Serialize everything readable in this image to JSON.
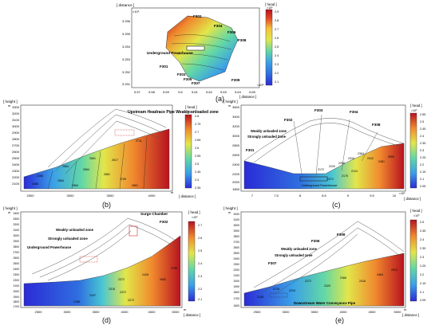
{
  "colorscale": [
    "#2b2bd6",
    "#2f6fe0",
    "#3aa0e8",
    "#49c6d3",
    "#62d7a6",
    "#9fe06a",
    "#e2e64a",
    "#f6c23a",
    "#f08a2e",
    "#e24a26",
    "#b8121f"
  ],
  "panel_a": {
    "label": "(a)",
    "y_axis_title": "[ distance ]",
    "exp_y": "×10⁶",
    "exp_x": "×10⁵",
    "x_axis_title": "[ distance ]",
    "x_unit": "m",
    "y_unit": "m",
    "y_ticks": [
      "3.256",
      "3.255",
      "3.254",
      "3.253",
      "3.252",
      "3.251"
    ],
    "x_ticks": [
      "5.57",
      "5.58",
      "5.59",
      "5.6",
      "5.61",
      "5.62",
      "5.63",
      "5.64",
      "5.65"
    ],
    "cb_title": "[ head ]",
    "cb_exp": "×10³",
    "cb_ticks": [
      "2.9",
      "2.8",
      "2.7",
      "2.6",
      "2.5",
      "2.4",
      "2.3",
      "2.2",
      "2.1"
    ],
    "callouts": {
      "f302": "F302",
      "f304": "F304",
      "f306": "F306",
      "f308": "F308",
      "powerhouse": "Underground\nPowerhouse",
      "f301": "F301",
      "f303": "F303",
      "f305": "F305",
      "f307": "F307",
      "f309": "F309"
    }
  },
  "panel_b": {
    "label": "(b)",
    "y_axis_title": "[ height ]",
    "y_unit": "m",
    "y_ticks": [
      "3300",
      "3200",
      "3100",
      "3000",
      "2900",
      "2800",
      "2700",
      "2600",
      "2500",
      "2400",
      "2300",
      "2200",
      "2100"
    ],
    "x_ticks": [
      "2500",
      "3000",
      "3500",
      "4000"
    ],
    "x_unit": "m",
    "x_axis_title": "[ distance ]",
    "cb_title": "[ head ]",
    "cb_exp": "×10³",
    "cb_ticks": [
      "2.8",
      "2.75",
      "2.7",
      "2.65",
      "2.6",
      "2.55",
      "2.5",
      "2.45",
      "2.4",
      "2.35"
    ],
    "annotation": "Upstream Headrace\nPipe\nWeakly unloaded\nzone",
    "contours": [
      "2466",
      "2564",
      "2661",
      "2564",
      "2711",
      "2466",
      "2564",
      "2661",
      "2759",
      "2617",
      "2564",
      "2661"
    ]
  },
  "panel_c": {
    "label": "(c)",
    "y_axis_title": "[ height ]",
    "y_unit": "m",
    "y_ticks": [
      "3600",
      "3400",
      "3200",
      "3000",
      "2800",
      "2600",
      "2400",
      "2200",
      "2000",
      "1800"
    ],
    "x_ticks": [
      "7",
      "7.5",
      "8",
      "8.5",
      "9",
      "9.5",
      "10"
    ],
    "x_exp": "×10⁵",
    "x_axis_title": "[ distance ]",
    "cb_title": "[ head ]",
    "cb_exp": "×10³",
    "cb_ticks": [
      "2.55",
      "2.5",
      "2.45",
      "2.4",
      "2.35",
      "2.3",
      "2.25",
      "2.2",
      "2.15",
      "2.1",
      "2.05"
    ],
    "faults": {
      "f302": "F302",
      "f303": "F303",
      "f304": "F304",
      "f308": "F308",
      "f301": "F301"
    },
    "zones": {
      "weak": "Weakly unloaded zone",
      "strong": "Strongly unloaded Zone"
    },
    "powerhouse": "Underground\nPowerhouse",
    "contours": [
      "2172",
      "2220",
      "2268",
      "2316",
      "2364",
      "2412",
      "2461",
      "2509",
      "2271",
      "2175",
      "2124"
    ]
  },
  "panel_d": {
    "label": "(d)",
    "y_axis_title": "[ height ]",
    "y_unit": "m",
    "y_ticks": [
      "3400",
      "3300",
      "3200",
      "3100",
      "3000",
      "2900",
      "2800",
      "2700",
      "2600",
      "2500",
      "2400",
      "2300",
      "2200",
      "2100",
      "2000",
      "1900",
      "1800",
      "1700"
    ],
    "x_ticks": [
      "2500",
      "3000",
      "3500",
      "4000",
      "4500",
      "5000"
    ],
    "x_unit": "m",
    "x_axis_title": "[ distance ]",
    "cb_title": "[ head ]",
    "cb_exp": "×10³",
    "cb_ticks": [
      "2.7",
      "2.6",
      "2.5",
      "2.4",
      "2.3",
      "2.2",
      "2.1"
    ],
    "annotations": {
      "surge": "Surge Chamber",
      "f302": "F302",
      "weak": "Weakly unloaded zone",
      "strong": "Strongly unloaded zone",
      "powerhouse": "Underground Powerhouse"
    },
    "contours": [
      "2197",
      "2372",
      "2318",
      "2472",
      "2426",
      "2652",
      "2755",
      "2272",
      "2168"
    ]
  },
  "panel_e": {
    "label": "(e)",
    "y_axis_title": "[ height ]",
    "y_unit": "m",
    "y_ticks": [
      "3200",
      "3100",
      "3000",
      "2900",
      "2800",
      "2700",
      "2600",
      "2500",
      "2400",
      "2300",
      "2200",
      "2100",
      "2000",
      "1900",
      "1800",
      "1700",
      "1600"
    ],
    "x_ticks": [
      "2500",
      "3000",
      "3500",
      "4000",
      "4500",
      "5000"
    ],
    "x_unit": "m",
    "x_axis_title": "[ distance ]",
    "cb_title": "[ head ]",
    "cb_exp": "×10³",
    "cb_ticks": [
      "2.5",
      "2.45",
      "2.4",
      "2.35",
      "2.3",
      "2.25",
      "2.2",
      "2.15",
      "2.1",
      "2.05"
    ],
    "annotations": {
      "f309": "F309",
      "f306": "F306",
      "weak": "Weakly unloaded zone",
      "strong": "Strongly unloaded zone",
      "f307": "F307",
      "pipe": "Downstream Water Conveyance Pipe"
    },
    "contours": [
      "2128",
      "2176",
      "2224",
      "2272",
      "2320",
      "2368",
      "2416",
      "2464",
      "2512"
    ]
  }
}
